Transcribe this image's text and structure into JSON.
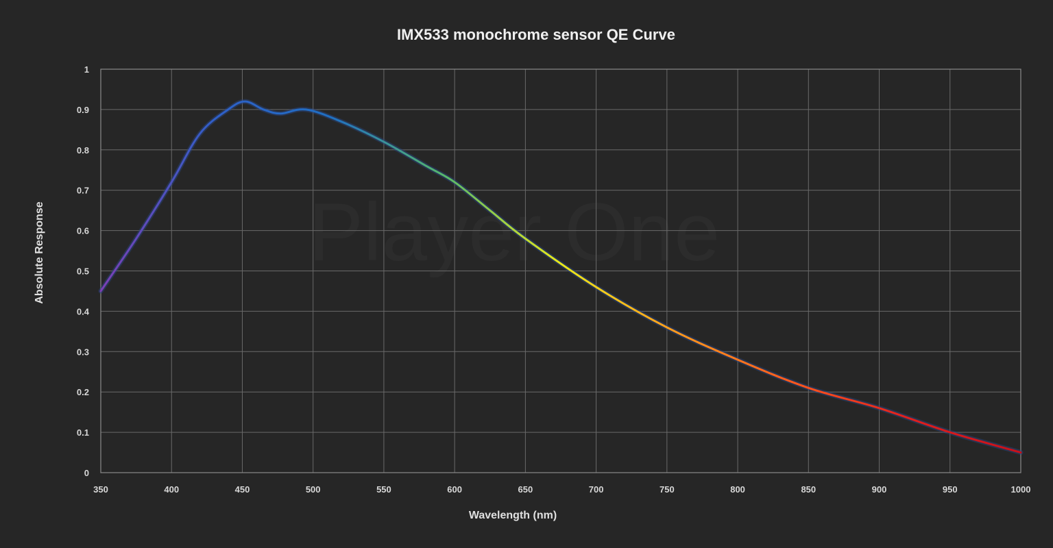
{
  "chart_data": {
    "type": "line",
    "title": "IMX533 monochrome sensor QE Curve",
    "xlabel": "Wavelength (nm)",
    "ylabel": "Absolute Response",
    "xlim": [
      350,
      1000
    ],
    "ylim": [
      0,
      1
    ],
    "x_ticks": [
      "350",
      "400",
      "450",
      "500",
      "550",
      "600",
      "650",
      "700",
      "750",
      "800",
      "850",
      "900",
      "950",
      "1000"
    ],
    "y_ticks": [
      "0",
      "0.1",
      "0.2",
      "0.3",
      "0.4",
      "0.5",
      "0.6",
      "0.7",
      "0.8",
      "0.9",
      "1"
    ],
    "grid": true,
    "watermark": "Player One",
    "series": [
      {
        "gradient_colors": [
          "#7a3fb5",
          "#2f5fc8",
          "#1f6fc2",
          "#58b86a",
          "#e8e81c",
          "#ff9a1e",
          "#ff5a1e",
          "#e0201e",
          "#c8101a"
        ],
        "x": [
          350,
          375,
          400,
          420,
          440,
          452,
          465,
          477,
          495,
          520,
          550,
          580,
          600,
          625,
          650,
          700,
          750,
          800,
          850,
          900,
          950,
          1000
        ],
        "y": [
          0.45,
          0.58,
          0.72,
          0.84,
          0.9,
          0.92,
          0.9,
          0.89,
          0.9,
          0.87,
          0.82,
          0.76,
          0.72,
          0.65,
          0.58,
          0.46,
          0.36,
          0.28,
          0.21,
          0.16,
          0.1,
          0.05
        ]
      }
    ]
  }
}
